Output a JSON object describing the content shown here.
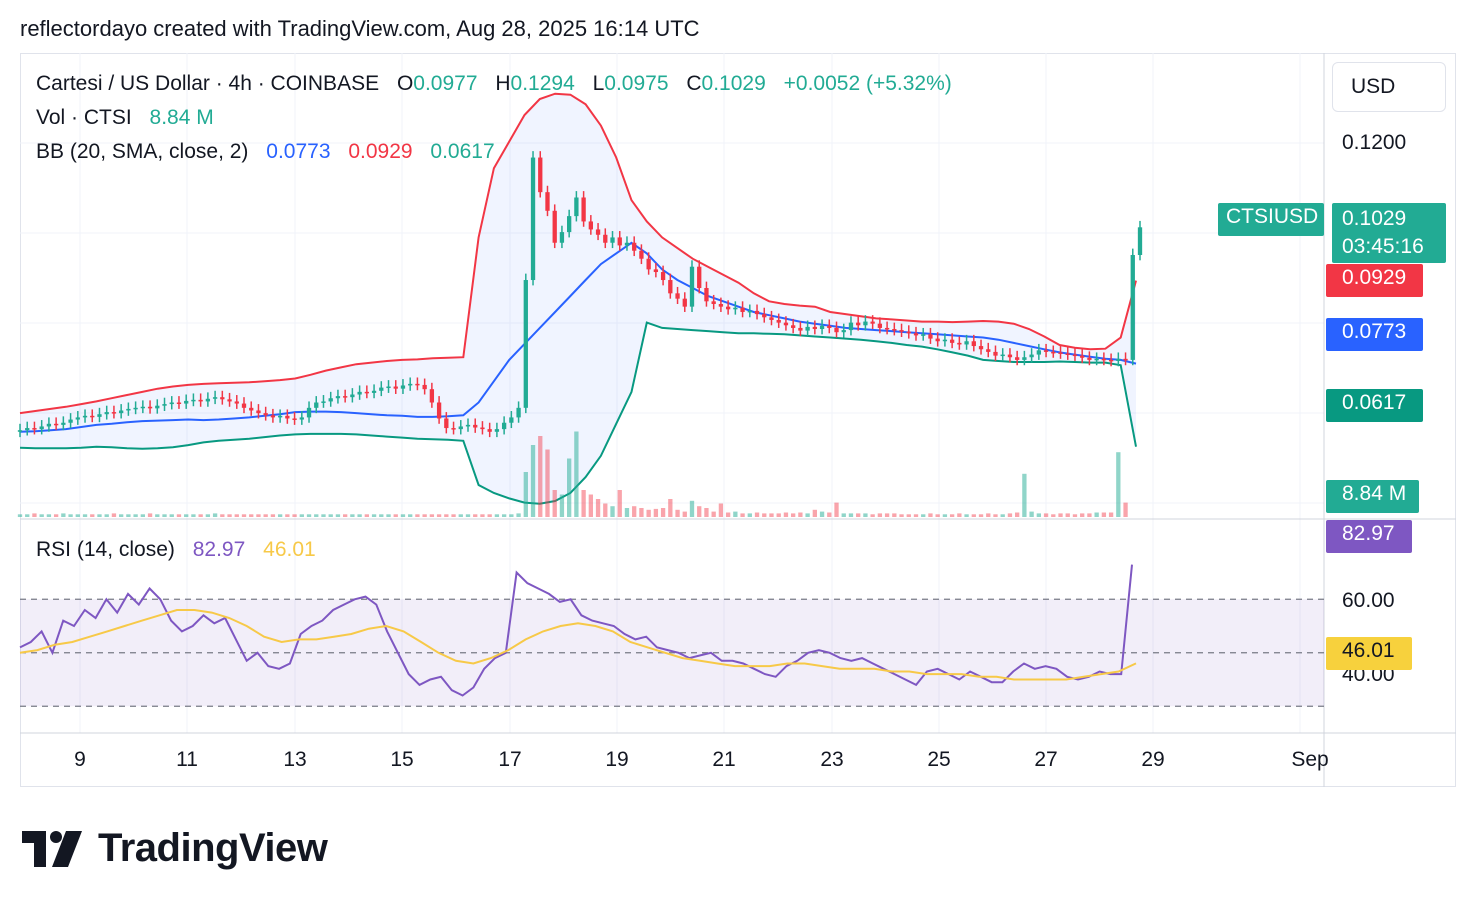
{
  "caption": "reflectordayo created with TradingView.com, Aug 28, 2025 16:14 UTC",
  "brand": "TradingView",
  "currency_button": "USD",
  "legend": {
    "symbol": "Cartesi / US Dollar · 4h · COINBASE",
    "o_label": "O",
    "o_value": "0.0977",
    "h_label": "H",
    "h_value": "0.1294",
    "l_label": "L",
    "l_value": "0.0975",
    "c_label": "C",
    "c_value": "0.1029",
    "change": "+0.0052 (+5.32%)",
    "vol_label": "Vol · CTSI",
    "vol_value": "8.84 M",
    "bb_label": "BB (20, SMA, close, 2)",
    "bb_basis": "0.0773",
    "bb_upper": "0.0929",
    "bb_lower": "0.0617",
    "rsi_label": "RSI (14, close)",
    "rsi_value": "82.97",
    "rsi_ma": "46.01"
  },
  "price_labels": {
    "symbol_tag": "CTSIUSD",
    "last_price": "0.1029",
    "countdown": "03:45:16",
    "bb_upper": "0.0929",
    "bb_basis": "0.0773",
    "bb_lower": "0.0617",
    "volume": "8.84 M",
    "rsi": "82.97",
    "rsi_ma": "46.01"
  },
  "y_axis_price": [
    "0.1200"
  ],
  "y_axis_rsi": [
    "60.00",
    "40.00"
  ],
  "x_axis": [
    "9",
    "11",
    "13",
    "15",
    "17",
    "19",
    "21",
    "23",
    "25",
    "27",
    "29",
    "Sep"
  ],
  "colors": {
    "up": "#22ab94",
    "down": "#f23645",
    "bb_basis": "#2962ff",
    "bb_upper": "#f23645",
    "bb_lower": "#089981",
    "rsi": "#7e57c2",
    "rsi_ma": "#f7c948"
  },
  "chart_data": {
    "type": "candlestick",
    "timeframe": "4h",
    "x_range": [
      "Aug 8",
      "Sep 1"
    ],
    "price_ylim": [
      0.05,
      0.13
    ],
    "rsi_ylim": [
      20,
      100
    ],
    "rsi_bands": [
      70,
      50,
      30
    ],
    "close": [
      0.0648,
      0.0652,
      0.065,
      0.0655,
      0.066,
      0.0658,
      0.0662,
      0.0668,
      0.0672,
      0.0675,
      0.0673,
      0.0678,
      0.0682,
      0.068,
      0.0685,
      0.0688,
      0.069,
      0.0692,
      0.0689,
      0.0694,
      0.0697,
      0.07,
      0.0698,
      0.0703,
      0.0705,
      0.0702,
      0.0707,
      0.071,
      0.0706,
      0.0702,
      0.0698,
      0.069,
      0.0685,
      0.068,
      0.0676,
      0.0672,
      0.0675,
      0.067,
      0.0668,
      0.0672,
      0.069,
      0.07,
      0.0702,
      0.0708,
      0.0712,
      0.071,
      0.0715,
      0.072,
      0.0718,
      0.0722,
      0.0728,
      0.073,
      0.0726,
      0.0732,
      0.0735,
      0.0733,
      0.0725,
      0.07,
      0.067,
      0.0652,
      0.065,
      0.0655,
      0.0658,
      0.0653,
      0.065,
      0.0645,
      0.065,
      0.0662,
      0.0672,
      0.069,
      0.093,
      0.116,
      0.1095,
      0.106,
      0.1,
      0.102,
      0.105,
      0.1085,
      0.104,
      0.1025,
      0.1015,
      0.1,
      0.101,
      0.0995,
      0.1,
      0.0985,
      0.097,
      0.095,
      0.0945,
      0.093,
      0.0905,
      0.0895,
      0.088,
      0.0955,
      0.0915,
      0.089,
      0.0885,
      0.088,
      0.0875,
      0.0878,
      0.087,
      0.0872,
      0.0866,
      0.086,
      0.0855,
      0.085,
      0.0845,
      0.084,
      0.0835,
      0.0842,
      0.0838,
      0.0844,
      0.084,
      0.0832,
      0.0836,
      0.085,
      0.0845,
      0.0852,
      0.0848,
      0.084,
      0.0838,
      0.0836,
      0.0833,
      0.083,
      0.0826,
      0.0828,
      0.082,
      0.0815,
      0.0818,
      0.0812,
      0.0809,
      0.0815,
      0.0806,
      0.08,
      0.0795,
      0.0788,
      0.079,
      0.0785,
      0.078,
      0.0785,
      0.079,
      0.0798,
      0.0795,
      0.0794,
      0.0792,
      0.079,
      0.0788,
      0.0784,
      0.078,
      0.0782,
      0.078,
      0.0778,
      0.0782,
      0.078,
      0.0977,
      0.1029
    ],
    "open": [
      0.0645,
      0.0648,
      0.0652,
      0.065,
      0.0655,
      0.066,
      0.0658,
      0.0662,
      0.0668,
      0.0672,
      0.0675,
      0.0673,
      0.0678,
      0.0682,
      0.068,
      0.0685,
      0.0688,
      0.069,
      0.0692,
      0.0689,
      0.0694,
      0.0697,
      0.07,
      0.0698,
      0.0703,
      0.0705,
      0.0702,
      0.0707,
      0.071,
      0.0706,
      0.0702,
      0.0698,
      0.069,
      0.0685,
      0.068,
      0.0676,
      0.0672,
      0.0675,
      0.067,
      0.0668,
      0.0672,
      0.069,
      0.07,
      0.0702,
      0.0708,
      0.0712,
      0.071,
      0.0715,
      0.072,
      0.0718,
      0.0722,
      0.0728,
      0.073,
      0.0726,
      0.0732,
      0.0735,
      0.0733,
      0.0725,
      0.07,
      0.067,
      0.0652,
      0.065,
      0.0655,
      0.0658,
      0.0653,
      0.065,
      0.0645,
      0.065,
      0.0662,
      0.0672,
      0.069,
      0.093,
      0.116,
      0.1095,
      0.106,
      0.1,
      0.102,
      0.105,
      0.1085,
      0.104,
      0.1025,
      0.1015,
      0.1,
      0.101,
      0.0995,
      0.1,
      0.0985,
      0.097,
      0.095,
      0.0945,
      0.093,
      0.0905,
      0.0895,
      0.088,
      0.0955,
      0.0915,
      0.089,
      0.0885,
      0.088,
      0.0875,
      0.0878,
      0.087,
      0.0872,
      0.0866,
      0.086,
      0.0855,
      0.085,
      0.0845,
      0.084,
      0.0835,
      0.0842,
      0.0838,
      0.0844,
      0.084,
      0.0832,
      0.0836,
      0.085,
      0.0845,
      0.0852,
      0.0848,
      0.084,
      0.0838,
      0.0836,
      0.0833,
      0.083,
      0.0826,
      0.0828,
      0.082,
      0.0815,
      0.0818,
      0.0812,
      0.0809,
      0.0815,
      0.0806,
      0.08,
      0.0795,
      0.0788,
      0.079,
      0.0785,
      0.078,
      0.0785,
      0.079,
      0.0798,
      0.0795,
      0.0794,
      0.0792,
      0.079,
      0.0788,
      0.0784,
      0.078,
      0.0782,
      0.078,
      0.0778,
      0.0782,
      0.078,
      0.0977
    ],
    "bb_upper_series": [
      0.068,
      0.0684,
      0.0688,
      0.0692,
      0.0697,
      0.0702,
      0.0708,
      0.0714,
      0.072,
      0.0726,
      0.073,
      0.0733,
      0.0735,
      0.0736,
      0.0737,
      0.0738,
      0.074,
      0.0742,
      0.0745,
      0.0752,
      0.076,
      0.0766,
      0.0772,
      0.0775,
      0.0778,
      0.078,
      0.0781,
      0.0783,
      0.0784,
      0.0785,
      0.101,
      0.114,
      0.119,
      0.124,
      0.127,
      0.128,
      0.1278,
      0.126,
      0.122,
      0.116,
      0.108,
      0.104,
      0.101,
      0.099,
      0.097,
      0.0955,
      0.094,
      0.0925,
      0.0905,
      0.089,
      0.0885,
      0.0882,
      0.088,
      0.087,
      0.0866,
      0.0862,
      0.0858,
      0.0856,
      0.0854,
      0.0852,
      0.0852,
      0.0851,
      0.0852,
      0.0853,
      0.0852,
      0.0848,
      0.0838,
      0.0824,
      0.0808,
      0.0803,
      0.08,
      0.0801,
      0.0822,
      0.0929
    ],
    "bb_basis_series": [
      0.0645,
      0.0646,
      0.0648,
      0.065,
      0.0654,
      0.0658,
      0.066,
      0.0663,
      0.0665,
      0.0666,
      0.0667,
      0.0668,
      0.0667,
      0.0668,
      0.067,
      0.0672,
      0.0675,
      0.0678,
      0.0682,
      0.0683,
      0.0683,
      0.0682,
      0.068,
      0.0678,
      0.0676,
      0.0675,
      0.0673,
      0.0673,
      0.0674,
      0.0676,
      0.07,
      0.074,
      0.078,
      0.081,
      0.084,
      0.087,
      0.09,
      0.093,
      0.096,
      0.098,
      0.1,
      0.098,
      0.095,
      0.093,
      0.0915,
      0.09,
      0.089,
      0.088,
      0.087,
      0.0864,
      0.0858,
      0.0852,
      0.0848,
      0.0844,
      0.084,
      0.0838,
      0.0836,
      0.0834,
      0.0832,
      0.083,
      0.0828,
      0.0826,
      0.0824,
      0.0822,
      0.0818,
      0.0812,
      0.0806,
      0.08,
      0.0794,
      0.079,
      0.0786,
      0.0782,
      0.078,
      0.0773
    ],
    "bb_lower_series": [
      0.0615,
      0.0614,
      0.0614,
      0.0614,
      0.0615,
      0.0617,
      0.0616,
      0.0614,
      0.0613,
      0.0614,
      0.0616,
      0.062,
      0.0625,
      0.0628,
      0.063,
      0.0632,
      0.0635,
      0.0638,
      0.064,
      0.0641,
      0.0641,
      0.0641,
      0.064,
      0.0638,
      0.0636,
      0.0634,
      0.0632,
      0.0631,
      0.063,
      0.0628,
      0.0545,
      0.053,
      0.052,
      0.0512,
      0.051,
      0.0515,
      0.053,
      0.056,
      0.06,
      0.066,
      0.072,
      0.085,
      0.084,
      0.0838,
      0.0836,
      0.0834,
      0.0832,
      0.083,
      0.083,
      0.0829,
      0.0828,
      0.0826,
      0.0824,
      0.0822,
      0.082,
      0.0818,
      0.0815,
      0.0812,
      0.0808,
      0.0805,
      0.08,
      0.0794,
      0.0788,
      0.078,
      0.0778,
      0.0776,
      0.0776,
      0.0776,
      0.0777,
      0.0776,
      0.0775,
      0.0775,
      0.077,
      0.0617
    ],
    "volume_millions": [
      0.3,
      0.3,
      0.4,
      0.3,
      0.3,
      0.3,
      0.4,
      0.3,
      0.3,
      0.3,
      0.3,
      0.3,
      0.3,
      0.4,
      0.3,
      0.3,
      0.3,
      0.3,
      0.4,
      0.3,
      0.3,
      0.3,
      0.3,
      0.3,
      0.3,
      0.3,
      0.3,
      0.4,
      0.3,
      0.3,
      0.3,
      0.3,
      0.3,
      0.3,
      0.3,
      0.3,
      0.3,
      0.3,
      0.3,
      0.3,
      0.3,
      0.3,
      0.3,
      0.3,
      0.3,
      0.3,
      0.3,
      0.3,
      0.3,
      0.3,
      0.3,
      0.3,
      0.3,
      0.3,
      0.3,
      0.3,
      0.3,
      0.3,
      0.3,
      0.3,
      0.3,
      0.3,
      0.3,
      0.3,
      0.3,
      0.3,
      0.3,
      0.3,
      0.3,
      0.4,
      5.0,
      8.0,
      9.0,
      7.5,
      3.0,
      2.5,
      6.5,
      9.5,
      3.0,
      2.5,
      2.0,
      1.5,
      1.2,
      3.0,
      1.0,
      1.2,
      1.0,
      0.8,
      0.9,
      1.0,
      2.0,
      0.8,
      0.6,
      1.8,
      1.2,
      1.0,
      0.6,
      1.5,
      0.5,
      0.6,
      0.4,
      0.4,
      0.5,
      0.4,
      0.4,
      0.4,
      0.5,
      0.4,
      0.5,
      0.4,
      0.8,
      0.6,
      0.5,
      1.6,
      0.4,
      0.4,
      0.4,
      0.4,
      0.3,
      0.4,
      0.4,
      0.4,
      0.3,
      0.3,
      0.3,
      0.3,
      0.4,
      0.3,
      0.3,
      0.3,
      0.4,
      0.3,
      0.3,
      0.3,
      0.4,
      0.3,
      0.3,
      0.4,
      0.5,
      4.8,
      0.6,
      0.4,
      0.4,
      0.3,
      0.4,
      0.4,
      0.3,
      0.4,
      0.4,
      0.5,
      0.5,
      0.5,
      7.2,
      1.6
    ],
    "rsi": [
      52,
      54,
      58,
      50,
      62,
      60,
      66,
      63,
      70,
      65,
      72,
      68,
      74,
      70,
      62,
      58,
      60,
      64,
      61,
      63,
      55,
      47,
      50,
      45,
      44,
      46,
      57,
      60,
      62,
      66,
      68,
      70,
      71,
      68,
      58,
      50,
      42,
      38,
      40,
      41,
      36,
      34,
      37,
      44,
      48,
      50,
      80,
      76,
      74,
      72,
      69,
      70,
      64,
      62,
      61,
      60,
      57,
      55,
      56,
      52,
      51,
      50,
      48,
      49,
      50,
      47,
      47,
      46,
      44,
      42,
      41,
      45,
      47,
      50,
      51,
      50,
      48,
      47,
      48,
      46,
      44,
      42,
      40,
      38,
      43,
      44,
      42,
      40,
      43,
      41,
      39,
      39,
      43,
      46,
      44,
      45,
      44,
      41,
      40,
      41,
      43,
      42,
      42,
      82.97
    ],
    "rsi_ma": [
      50,
      51,
      53,
      54,
      56,
      58,
      60,
      62,
      64,
      66,
      66,
      65,
      63,
      60,
      56,
      54,
      55,
      55,
      56,
      57,
      59,
      60,
      58,
      54,
      50,
      47,
      46,
      48,
      51,
      55,
      58,
      60,
      61,
      60,
      58,
      54,
      52,
      50,
      48,
      47,
      46,
      45,
      45,
      45,
      46,
      46,
      45,
      44,
      44,
      44,
      43,
      43,
      42,
      42,
      42,
      41,
      41,
      40,
      40,
      40,
      40,
      41,
      42,
      43,
      46.01
    ]
  }
}
